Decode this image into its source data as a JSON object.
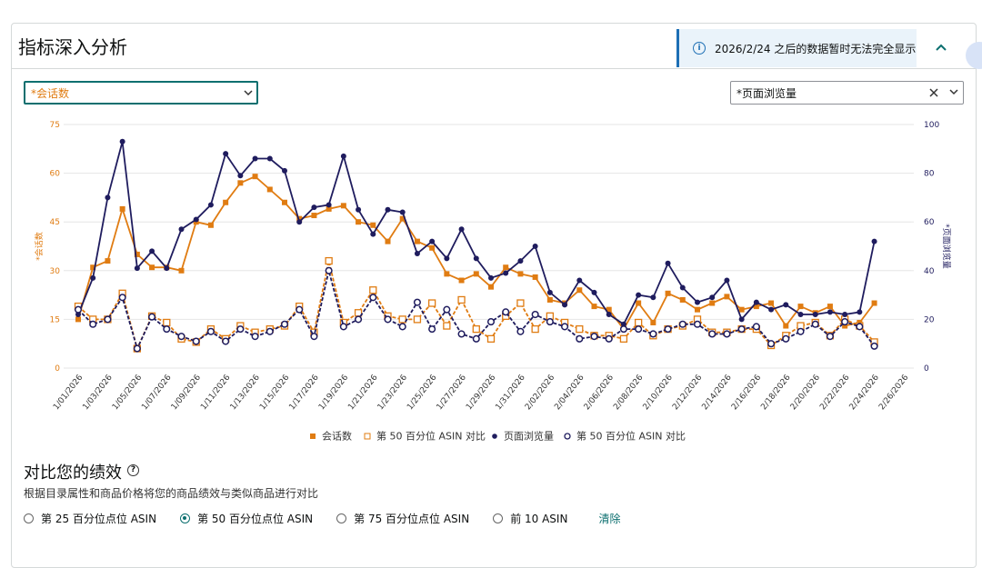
{
  "header": {
    "title": "指标深入分析",
    "notice": "2026/2/24 之后的数据暂时无法完全显示"
  },
  "controls": {
    "left_select": "*会话数",
    "right_select": "*页面浏览量"
  },
  "chart_data": {
    "type": "line",
    "categories": [
      "1/01/2026",
      null,
      "1/03/2026",
      null,
      "1/05/2026",
      null,
      "1/07/2026",
      null,
      "1/09/2026",
      null,
      "1/11/2026",
      null,
      "1/13/2026",
      null,
      "1/15/2026",
      null,
      "1/17/2026",
      null,
      "1/19/2026",
      null,
      "1/21/2026",
      null,
      "1/23/2026",
      null,
      "1/25/2026",
      null,
      "1/27/2026",
      null,
      "1/29/2026",
      null,
      "1/31/2026",
      null,
      "2/02/2026",
      null,
      "2/04/2026",
      null,
      "2/06/2026",
      null,
      "2/08/2026",
      null,
      "2/10/2026",
      null,
      "2/12/2026",
      null,
      "2/14/2026",
      null,
      "2/16/2026",
      null,
      "2/18/2026",
      null,
      "2/20/2026",
      null,
      "2/22/2026",
      null,
      "2/24/2026",
      null,
      "2/26/2026"
    ],
    "series": [
      {
        "name": "会话数",
        "color": "#e07c12",
        "axis": "y",
        "marker": "square",
        "dashed": false,
        "values": [
          15,
          31,
          33,
          49,
          35,
          31,
          31,
          30,
          45,
          44,
          51,
          57,
          59,
          55,
          51,
          46,
          47,
          49,
          50,
          45,
          44,
          39,
          46,
          39,
          37,
          29,
          27,
          29,
          25,
          31,
          29,
          28,
          21,
          20,
          24,
          19,
          18,
          12,
          20,
          14,
          23,
          21,
          18,
          20,
          22,
          18,
          19,
          20,
          13,
          19,
          17,
          19,
          13,
          14,
          20,
          null,
          null
        ]
      },
      {
        "name": "第 50 百分位 ASIN 对比",
        "color": "#e07c12",
        "axis": "y",
        "marker": "square-open",
        "dashed": true,
        "values": [
          19,
          15,
          15,
          23,
          6,
          16,
          14,
          9,
          8,
          12,
          9,
          13,
          11,
          12,
          13,
          19,
          11,
          33,
          14,
          17,
          24,
          16,
          15,
          15,
          20,
          13,
          21,
          12,
          9,
          16,
          20,
          12,
          16,
          14,
          12,
          10,
          10,
          9,
          14,
          10,
          12,
          13,
          15,
          11,
          11,
          12,
          12,
          7,
          10,
          13,
          14,
          10,
          15,
          13,
          8,
          null,
          null
        ]
      },
      {
        "name": "页面浏览量",
        "color": "#1f1c5e",
        "axis": "y2",
        "marker": "circle",
        "dashed": false,
        "values": [
          22,
          37,
          70,
          93,
          41,
          48,
          41,
          57,
          61,
          67,
          88,
          79,
          86,
          86,
          81,
          60,
          66,
          67,
          87,
          65,
          55,
          65,
          64,
          47,
          52,
          45,
          57,
          45,
          37,
          39,
          44,
          50,
          31,
          26,
          36,
          31,
          22,
          18,
          30,
          29,
          43,
          33,
          27,
          29,
          36,
          20,
          27,
          24,
          26,
          22,
          22,
          23,
          22,
          23,
          52,
          null,
          null
        ]
      },
      {
        "name": "第 50 百分位 ASIN 对比",
        "color": "#1f1c5e",
        "axis": "y2",
        "marker": "circle-open",
        "dashed": true,
        "values": [
          24,
          18,
          20,
          29,
          8,
          21,
          16,
          13,
          11,
          15,
          11,
          16,
          13,
          15,
          18,
          24,
          13,
          40,
          17,
          20,
          29,
          20,
          17,
          27,
          16,
          24,
          14,
          12,
          19,
          23,
          15,
          22,
          19,
          17,
          12,
          13,
          12,
          16,
          16,
          14,
          16,
          18,
          18,
          14,
          14,
          16,
          17,
          10,
          12,
          15,
          18,
          13,
          19,
          17,
          9,
          null,
          null
        ]
      }
    ],
    "ylabel": "*会话数",
    "y2label": "*页面浏览量",
    "ylim": [
      0,
      75
    ],
    "yticks": [
      0,
      15,
      30,
      45,
      60,
      75
    ],
    "y2lim": [
      0,
      100
    ],
    "y2ticks": [
      0,
      20,
      40,
      60,
      80,
      100
    ],
    "ytick_color": "#e07c12",
    "y2tick_color": "#1f1c5e",
    "grid": true,
    "legend": "bottom"
  },
  "comparison": {
    "title": "对比您的绩效",
    "description": "根据目录属性和商品价格将您的商品绩效与类似商品进行对比",
    "options": [
      "第 25 百分位点位 ASIN",
      "第 50 百分位点位 ASIN",
      "第 75 百分位点位 ASIN",
      "前 10 ASIN"
    ],
    "selected": 1,
    "clear": "清除"
  }
}
